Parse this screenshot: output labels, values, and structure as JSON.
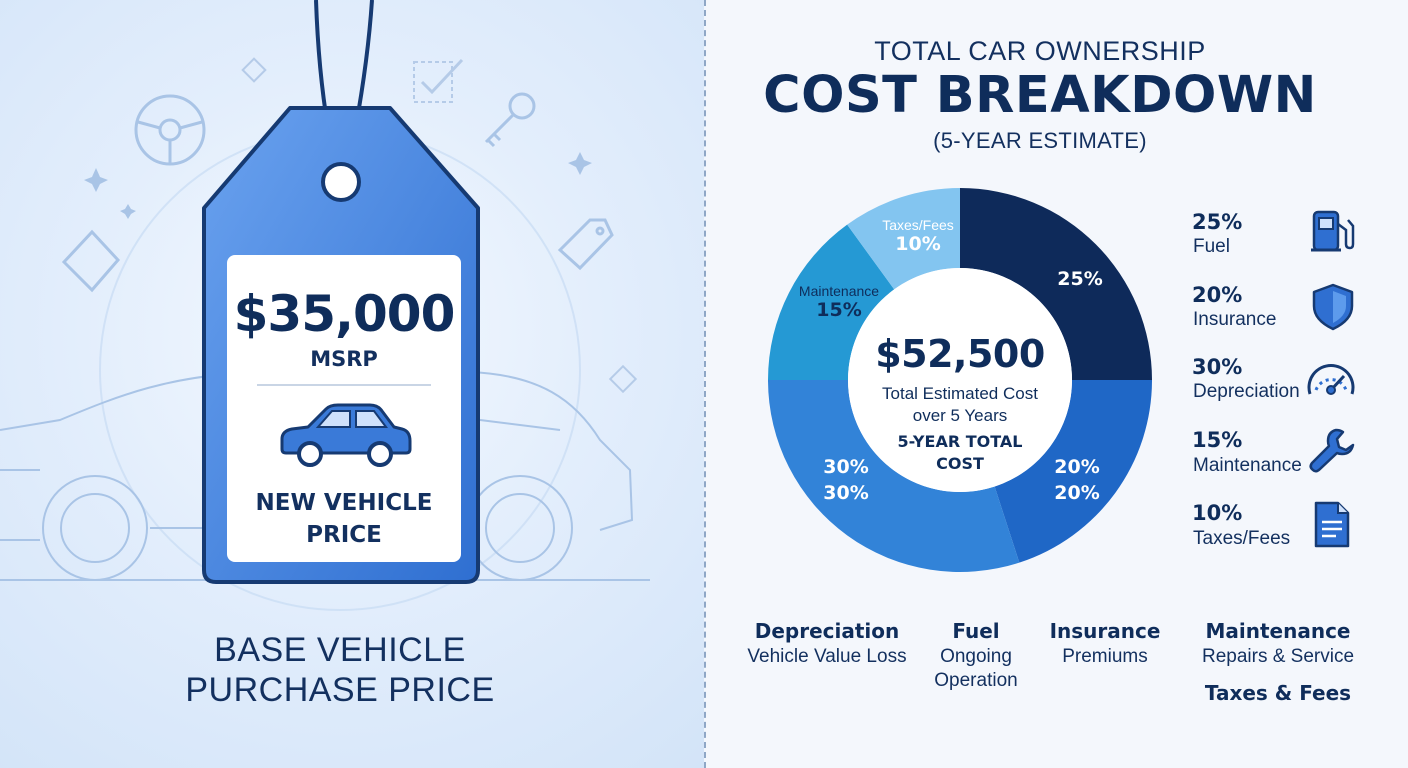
{
  "left": {
    "tag_price": "$35,000",
    "tag_msrp": "MSRP",
    "tag_label_line1": "NEW VEHICLE",
    "tag_label_line2": "PRICE",
    "caption_line1": "BASE VEHICLE",
    "caption_line2": "PURCHASE PRICE"
  },
  "header": {
    "title_top": "TOTAL CAR OWNERSHIP",
    "title_main": "COST BREAKDOWN",
    "subtitle": "(5-YEAR ESTIMATE)"
  },
  "center": {
    "value": "$52,500",
    "caption_line1": "Total Estimated Cost",
    "caption_line2": "over 5 Years",
    "tag_line1": "5-YEAR TOTAL",
    "tag_line2": "COST"
  },
  "chart_data": {
    "type": "pie",
    "title": "COST BREAKDOWN",
    "total": 52500,
    "slices": [
      {
        "name": "Fuel",
        "value": 25,
        "color": "#0e2a5a",
        "label": "25%"
      },
      {
        "name": "Insurance",
        "value": 20,
        "color": "#1f67c6",
        "label": "20%"
      },
      {
        "name": "Depreciation",
        "value": 30,
        "color": "#3283d8",
        "label": "30%"
      },
      {
        "name": "Maintenance",
        "value": 15,
        "color": "#2599d4",
        "label": "15%"
      },
      {
        "name": "Taxes/Fees",
        "value": 10,
        "color": "#83c5f0",
        "label": "10%"
      }
    ]
  },
  "slice_labels": {
    "fuel_pct": "25%",
    "insurance_pct1": "20%",
    "insurance_pct2": "20%",
    "depreciation_pct1": "30%",
    "depreciation_pct2": "30%",
    "maintenance_name": "Maintenance",
    "maintenance_pct": "15%",
    "taxes_name": "Taxes/Fees",
    "taxes_pct": "10%"
  },
  "legend": [
    {
      "pct": "25%",
      "name": "Fuel",
      "icon": "fuel-pump-icon"
    },
    {
      "pct": "20%",
      "name": "Insurance",
      "icon": "shield-icon"
    },
    {
      "pct": "30%",
      "name": "Depreciation",
      "icon": "speedometer-icon"
    },
    {
      "pct": "15%",
      "name": "Maintenance",
      "icon": "wrench-icon"
    },
    {
      "pct": "10%",
      "name": "Taxes/Fees",
      "icon": "document-icon"
    }
  ],
  "categories": {
    "depreciation_title": "Depreciation",
    "depreciation_sub": "Vehicle Value Loss",
    "fuel_title": "Fuel",
    "fuel_sub1": "Ongoing",
    "fuel_sub2": "Operation",
    "insurance_title": "Insurance",
    "insurance_sub": "Premiums",
    "maintenance_title": "Maintenance",
    "maintenance_sub": "Repairs & Service",
    "taxes_title": "Taxes & Fees"
  },
  "colors": {
    "navy": "#0f2d5b",
    "tag_blue": "#3f7fe0",
    "accent": "#2f6fd1"
  }
}
